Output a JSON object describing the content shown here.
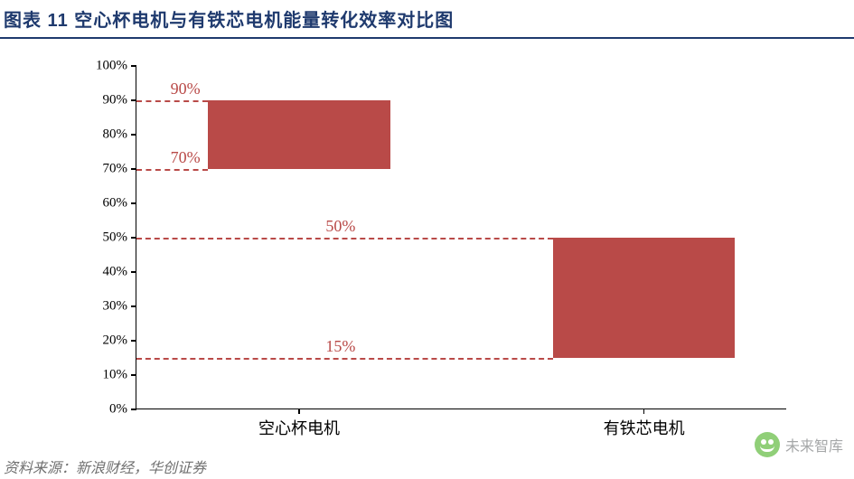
{
  "header": {
    "title": "图表 11    空心杯电机与有铁芯电机能量转化效率对比图"
  },
  "chart": {
    "type": "range-bar",
    "ylabel_suffix": "%",
    "ylim": [
      0,
      100
    ],
    "ytick_step": 10,
    "yticks": [
      0,
      10,
      20,
      30,
      40,
      50,
      60,
      70,
      80,
      90,
      100
    ],
    "ytick_labels": [
      "0%",
      "10%",
      "20%",
      "30%",
      "40%",
      "50%",
      "60%",
      "70%",
      "80%",
      "90%",
      "100%"
    ],
    "categories": [
      "空心杯电机",
      "有铁芯电机"
    ],
    "series": [
      {
        "label": "空心杯电机",
        "low": 70,
        "high": 90,
        "low_label": "70%",
        "high_label": "90%",
        "x_center_pct": 25,
        "bar_width_pct": 28
      },
      {
        "label": "有铁芯电机",
        "low": 15,
        "high": 50,
        "low_label": "15%",
        "high_label": "50%",
        "x_center_pct": 78,
        "bar_width_pct": 28
      }
    ],
    "colors": {
      "bar_fill": "#b94a48",
      "dash": "#b94a48",
      "axis": "#000000",
      "background": "#ffffff",
      "title": "#1f3a6e"
    },
    "fonts": {
      "title_size_pt": 20,
      "tick_size_pt": 15,
      "category_size_pt": 18,
      "annotation_size_pt": 18
    }
  },
  "watermark": {
    "text": "未来智库",
    "icon": "wechat-icon"
  },
  "footnote": {
    "text": "资料来源：新浪财经，华创证券"
  }
}
